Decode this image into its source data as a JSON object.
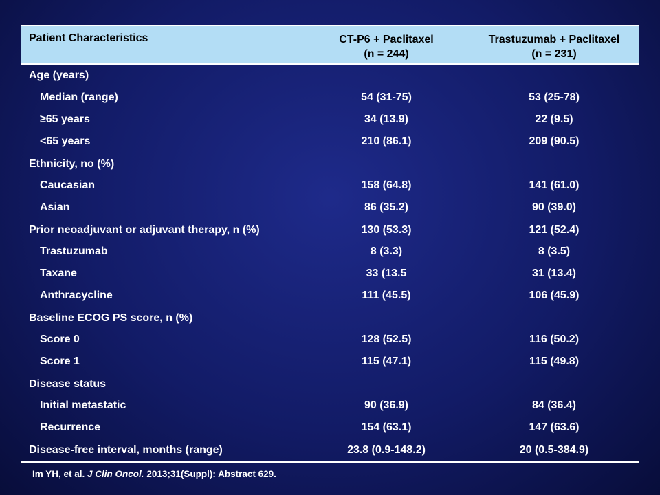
{
  "header": {
    "col1": "Patient Characteristics",
    "col2_line1": "CT-P6 + Paclitaxel",
    "col2_line2": "(n = 244)",
    "col3_line1": "Trastuzumab + Paclitaxel",
    "col3_line2": "(n = 231)"
  },
  "rows": [
    {
      "label": "Age (years)",
      "v1": "",
      "v2": ""
    },
    {
      "label": "Median (range)",
      "v1": "54 (31-75)",
      "v2": "53 (25-78)"
    },
    {
      "label": "≥65 years",
      "v1": "34 (13.9)",
      "v2": "22 (9.5)"
    },
    {
      "label": "<65 years",
      "v1": "210 (86.1)",
      "v2": "209 (90.5)"
    },
    {
      "label": "Ethnicity, no (%)",
      "v1": "",
      "v2": ""
    },
    {
      "label": "Caucasian",
      "v1": "158 (64.8)",
      "v2": "141 (61.0)"
    },
    {
      "label": "Asian",
      "v1": "86 (35.2)",
      "v2": "90 (39.0)"
    },
    {
      "label": "Prior neoadjuvant or adjuvant therapy, n (%)",
      "v1": "130 (53.3)",
      "v2": "121 (52.4)"
    },
    {
      "label": "Trastuzumab",
      "v1": "8 (3.3)",
      "v2": "8 (3.5)"
    },
    {
      "label": "Taxane",
      "v1": "33 (13.5",
      "v2": "31 (13.4)"
    },
    {
      "label": "Anthracycline",
      "v1": "111 (45.5)",
      "v2": "106 (45.9)"
    },
    {
      "label": "Baseline ECOG PS score, n (%)",
      "v1": "",
      "v2": ""
    },
    {
      "label": "Score 0",
      "v1": "128 (52.5)",
      "v2": "116 (50.2)"
    },
    {
      "label": "Score 1",
      "v1": "115 (47.1)",
      "v2": "115 (49.8)"
    },
    {
      "label": "Disease status",
      "v1": "",
      "v2": ""
    },
    {
      "label": "Initial metastatic",
      "v1": "90 (36.9)",
      "v2": "84 (36.4)"
    },
    {
      "label": "Recurrence",
      "v1": "154 (63.1)",
      "v2": "147 (63.6)"
    },
    {
      "label": "Disease-free interval, months (range)",
      "v1": "23.8 (0.9-148.2)",
      "v2": "20 (0.5-384.9)"
    }
  ],
  "reference": {
    "authors": "Im YH, et al.",
    "journal": "J Clin Oncol.",
    "citation": "2013;31(Suppl): Abstract 629."
  }
}
